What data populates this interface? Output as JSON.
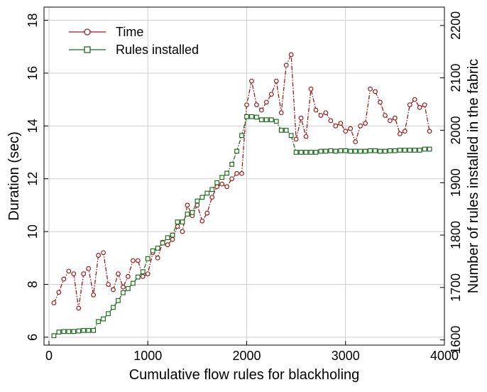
{
  "chart_data": {
    "type": "line",
    "xlabel": "Cumulative flow rules for blackholing",
    "ylabel_left": "Duration (sec)",
    "ylabel_right": "Number of rules installed in the fabric",
    "xlim": [
      -50,
      4000
    ],
    "ylim_left": [
      5.7,
      18.5
    ],
    "ylim_right": [
      1590,
      2235
    ],
    "x_ticks": [
      0,
      1000,
      2000,
      3000,
      4000
    ],
    "y_left_ticks": [
      6,
      8,
      10,
      12,
      14,
      16,
      18
    ],
    "y_right_ticks": [
      1600,
      1700,
      1800,
      1900,
      2000,
      2100,
      2200
    ],
    "grid": true,
    "legend_placement": "top-left",
    "series": [
      {
        "name": "Time",
        "axis": "left",
        "color": "#9b1c1c",
        "marker": "circle",
        "x": [
          50,
          100,
          150,
          200,
          250,
          300,
          350,
          400,
          450,
          500,
          550,
          600,
          650,
          700,
          750,
          800,
          850,
          900,
          950,
          1000,
          1050,
          1100,
          1150,
          1200,
          1250,
          1300,
          1350,
          1400,
          1450,
          1500,
          1550,
          1600,
          1650,
          1700,
          1750,
          1800,
          1850,
          1900,
          1950,
          2000,
          2050,
          2100,
          2150,
          2200,
          2250,
          2300,
          2350,
          2400,
          2450,
          2500,
          2550,
          2600,
          2650,
          2700,
          2750,
          2800,
          2850,
          2900,
          2950,
          3000,
          3050,
          3100,
          3150,
          3200,
          3250,
          3300,
          3350,
          3400,
          3450,
          3500,
          3550,
          3600,
          3650,
          3700,
          3750,
          3800,
          3850
        ],
        "y": [
          7.3,
          7.7,
          8.2,
          8.5,
          8.4,
          7.1,
          8.4,
          8.6,
          7.6,
          9.1,
          9.2,
          8.0,
          7.8,
          8.4,
          7.9,
          8.3,
          8.9,
          8.9,
          8.3,
          8.4,
          9.2,
          9.0,
          9.6,
          9.5,
          9.7,
          10.2,
          10.0,
          11.0,
          10.6,
          11.0,
          10.4,
          10.7,
          11.3,
          11.7,
          11.8,
          11.7,
          12.0,
          12.2,
          12.2,
          14.8,
          15.7,
          14.8,
          14.6,
          14.9,
          15.2,
          15.7,
          14.5,
          16.3,
          16.7,
          13.5,
          14.3,
          13.6,
          15.4,
          14.6,
          14.4,
          14.5,
          14.2,
          14.0,
          14.1,
          13.8,
          13.9,
          13.4,
          14.0,
          14.1,
          15.4,
          15.3,
          14.9,
          14.4,
          14.2,
          14.3,
          13.7,
          13.8,
          14.8,
          15.0,
          14.7,
          14.8,
          13.8
        ]
      },
      {
        "name": "Rules installed",
        "axis": "right",
        "color": "#1e6b1e",
        "marker": "square",
        "x": [
          50,
          100,
          150,
          200,
          250,
          300,
          350,
          400,
          450,
          500,
          550,
          600,
          650,
          700,
          750,
          800,
          850,
          900,
          950,
          1000,
          1050,
          1100,
          1150,
          1200,
          1250,
          1300,
          1350,
          1400,
          1450,
          1500,
          1550,
          1600,
          1650,
          1700,
          1750,
          1800,
          1850,
          1900,
          1950,
          2000,
          2050,
          2100,
          2150,
          2200,
          2250,
          2300,
          2350,
          2400,
          2450,
          2500,
          2550,
          2600,
          2650,
          2700,
          2750,
          2800,
          2850,
          2900,
          2950,
          3000,
          3050,
          3100,
          3150,
          3200,
          3250,
          3300,
          3350,
          3400,
          3450,
          3500,
          3550,
          3600,
          3650,
          3700,
          3750,
          3800,
          3850
        ],
        "y": [
          1608,
          1615,
          1616,
          1616,
          1616,
          1617,
          1618,
          1618,
          1618,
          1635,
          1640,
          1650,
          1662,
          1675,
          1690,
          1698,
          1708,
          1720,
          1730,
          1755,
          1770,
          1775,
          1785,
          1795,
          1800,
          1825,
          1825,
          1840,
          1843,
          1865,
          1872,
          1880,
          1887,
          1900,
          1910,
          1918,
          1935,
          1960,
          1990,
          2026,
          2026,
          2025,
          2020,
          2020,
          2020,
          2017,
          2000,
          2000,
          1990,
          1958,
          1958,
          1958,
          1958,
          1958,
          1960,
          1960,
          1961,
          1960,
          1961,
          1961,
          1960,
          1960,
          1960,
          1960,
          1961,
          1961,
          1960,
          1960,
          1961,
          1961,
          1962,
          1962,
          1962,
          1962,
          1962,
          1964,
          1964
        ]
      }
    ]
  }
}
